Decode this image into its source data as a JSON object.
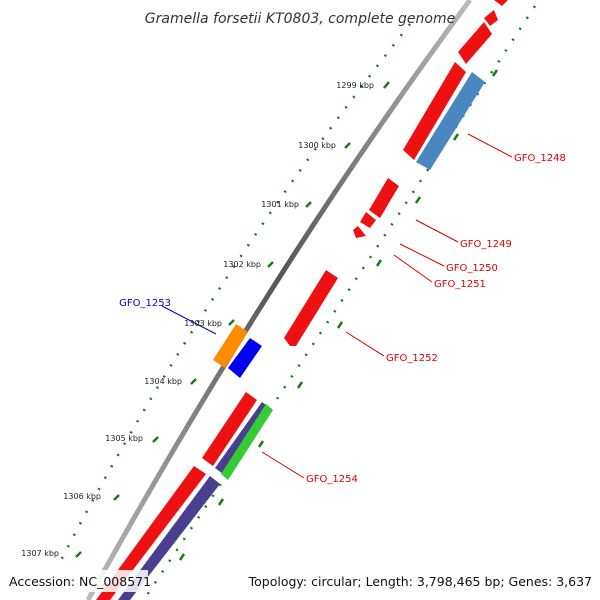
{
  "title": "Gramella forsetii KT0803, complete genome",
  "footer": {
    "accession": "Accession: NC_008571",
    "summary": "Topology: circular; Length: 3,798,465 bp; Genes: 3,637"
  },
  "kbp_ticks": [
    "1299 kbp",
    "1300 kbp",
    "1301 kbp",
    "1302 kbp",
    "1303 kbp",
    "1304 kbp",
    "1305 kbp",
    "1306 kbp",
    "1307 kbp"
  ],
  "gene_labels": {
    "gfo_1248": "GFO_1248",
    "gfo_1249": "GFO_1249",
    "gfo_1250": "GFO_1250",
    "gfo_1251": "GFO_1251",
    "gfo_1252": "GFO_1252",
    "gfo_1253": "GFO_1253",
    "gfo_1254": "GFO_1254"
  },
  "colors": {
    "red": "#ee1111",
    "red_label": "#dd0000",
    "blue_label": "#0000cc",
    "steel_blue": "#4a86c0",
    "navy": "#4a3f8f",
    "orange": "#ff8c00",
    "blue": "#0000ee",
    "green": "#33cc33",
    "tick_green": "#1a7a1a",
    "backbone": "#777777"
  }
}
